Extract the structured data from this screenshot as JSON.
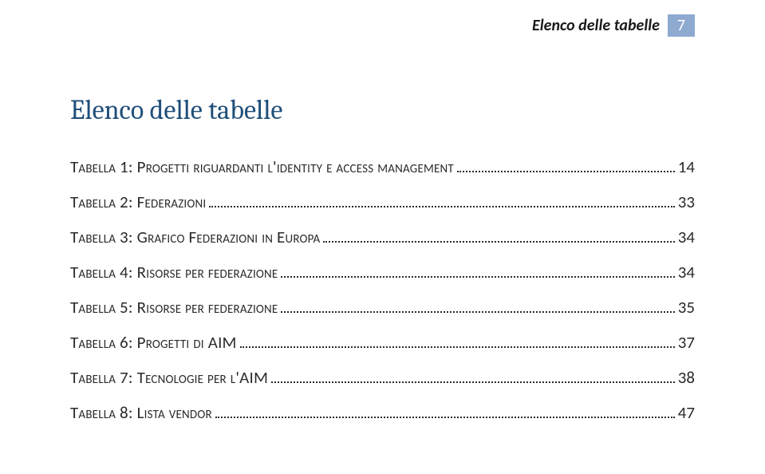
{
  "header": {
    "title": "Elenco delle tabelle",
    "page_number": "7",
    "page_box_bg": "#8faad1",
    "page_box_color": "#ffffff"
  },
  "heading": {
    "text": "Elenco delle tabelle",
    "color": "#1f4e79",
    "fontsize": 34
  },
  "toc": {
    "text_color": "#2b2b2b",
    "fontsize": 21,
    "entries": [
      {
        "label": "Tabella 1: Progetti riguardanti l'identity e access management",
        "page": "14"
      },
      {
        "label": "Tabella 2: Federazioni",
        "page": "33"
      },
      {
        "label": "Tabella 3: Grafico Federazioni in Europa",
        "page": "34"
      },
      {
        "label": "Tabella 4: Risorse per federazione",
        "page": "34"
      },
      {
        "label": "Tabella 5: Risorse per federazione",
        "page": "35"
      },
      {
        "label": "Tabella 6: Progetti di AIM",
        "page": "37"
      },
      {
        "label": "Tabella 7: Tecnologie per l'AIM",
        "page": "38"
      },
      {
        "label": "Tabella 8: Lista vendor",
        "page": "47"
      }
    ]
  },
  "colors": {
    "background": "#ffffff",
    "dot_color": "#2b2b2b"
  }
}
